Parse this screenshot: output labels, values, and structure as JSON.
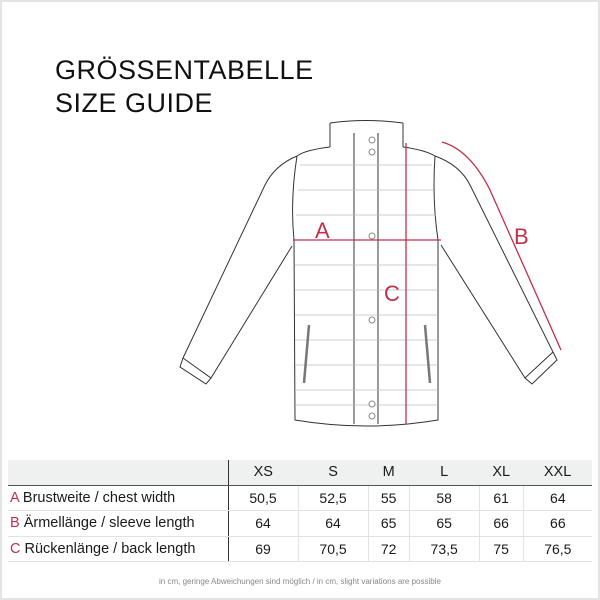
{
  "title": {
    "line1": "GRÖSSENTABELLE",
    "line2": "SIZE GUIDE"
  },
  "diagram": {
    "labels": {
      "a": "A",
      "b": "B",
      "c": "C"
    },
    "accent": "#c0304a"
  },
  "table": {
    "sizes": [
      "XS",
      "S",
      "M",
      "L",
      "XL",
      "XXL"
    ],
    "rows": [
      {
        "letter": "A",
        "label": "Brustweite / chest width",
        "values": [
          "50,5",
          "52,5",
          "55",
          "58",
          "61",
          "64"
        ]
      },
      {
        "letter": "B",
        "label": "Ärmellänge / sleeve length",
        "values": [
          "64",
          "64",
          "65",
          "65",
          "66",
          "66"
        ]
      },
      {
        "letter": "C",
        "label": "Rückenlänge / back length",
        "values": [
          "69",
          "70,5",
          "72",
          "73,5",
          "75",
          "76,5"
        ]
      }
    ]
  },
  "note": "in cm, geringe Abweichungen sind möglich / in cm, slight variations are possible"
}
